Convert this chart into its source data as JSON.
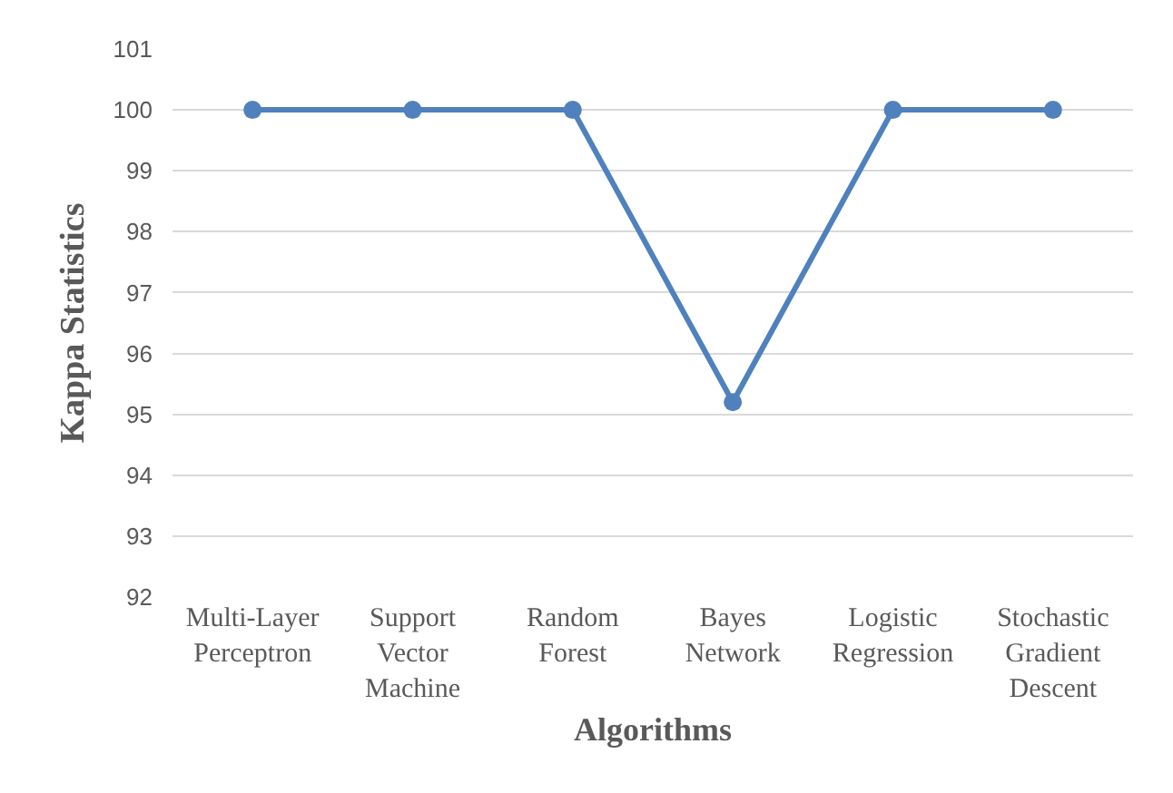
{
  "chart_data": {
    "type": "line",
    "xlabel": "Algorithms",
    "ylabel": "Kappa Statistics",
    "categories": [
      "Multi-Layer Perceptron",
      "Support Vector Machine",
      "Random Forest",
      "Bayes Network",
      "Logistic Regression",
      "Stochastic Gradient Descent"
    ],
    "series": [
      {
        "color": "#4f81bd",
        "values": [
          100,
          100,
          100,
          95.2,
          100,
          100
        ]
      }
    ],
    "ylim": [
      92,
      101
    ],
    "yticks": [
      92,
      93,
      94,
      95,
      96,
      97,
      98,
      99,
      100,
      101
    ],
    "grid": "y",
    "marker": "circle",
    "line_style": "solid"
  }
}
